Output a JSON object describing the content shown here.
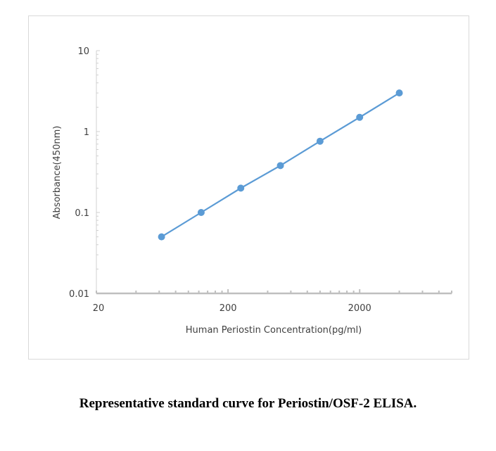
{
  "chart_data": {
    "type": "line",
    "title": "",
    "xlabel": "Human Periostin Concentration(pg/ml)",
    "ylabel": "Absorbance(450nm)",
    "x_scale": "log",
    "y_scale": "log",
    "xlim": [
      20,
      10000
    ],
    "ylim": [
      0.01,
      10
    ],
    "x_tick_labels": [
      "20",
      "200",
      "2000"
    ],
    "y_tick_labels": [
      "0.01",
      "0.1",
      "1",
      "10"
    ],
    "grid": false,
    "legend": "none",
    "series": [
      {
        "x": [
          62.5,
          125,
          250,
          500,
          1000,
          2000,
          4000
        ],
        "y": [
          0.05,
          0.1,
          0.2,
          0.38,
          0.76,
          1.5,
          3.0
        ],
        "color": "#5b9bd5"
      }
    ]
  },
  "caption": "Representative standard curve for Periostin/OSF-2 ELISA."
}
